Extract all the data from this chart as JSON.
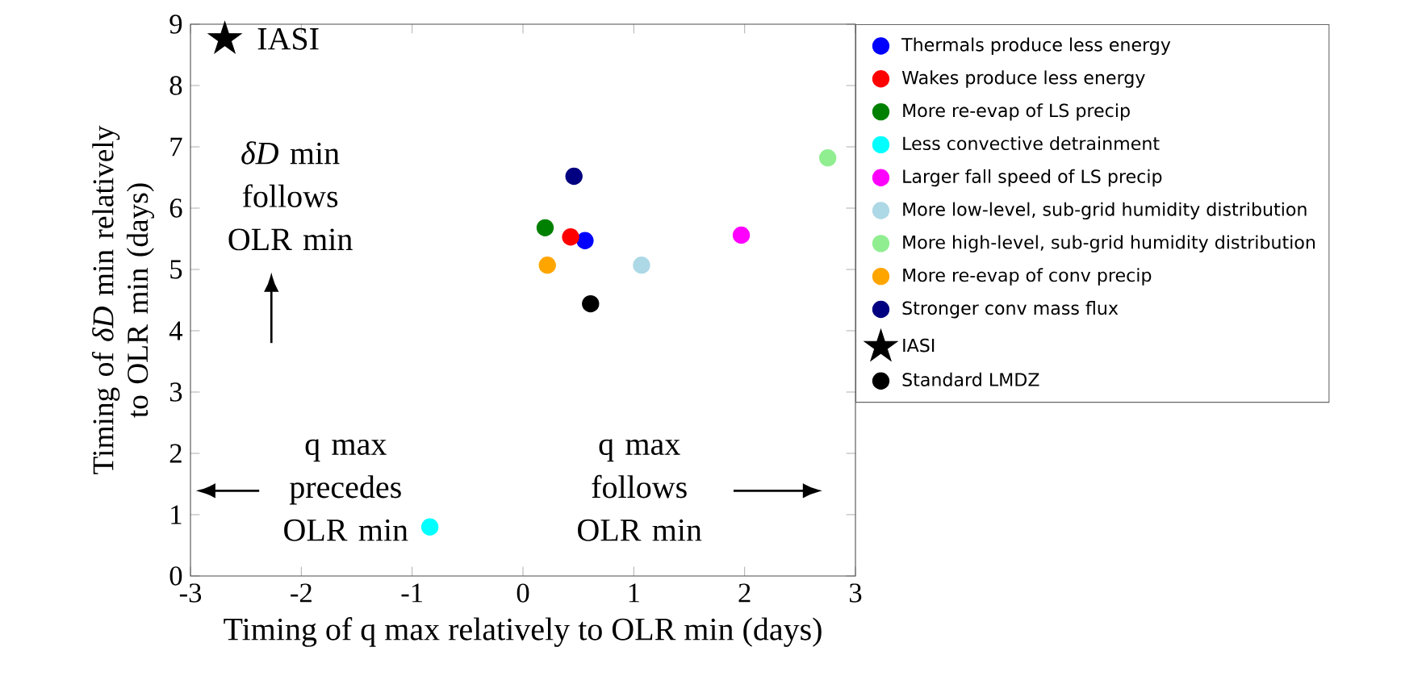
{
  "chart_data": {
    "type": "scatter",
    "xlabel": "Timing of q max relatively to OLR min (days)",
    "ylabel": "Timing of *δD* min relatively to OLR min (days)",
    "xlim": [
      -3,
      3
    ],
    "xticks": [
      -3,
      -2,
      -1,
      0,
      1,
      2,
      3
    ],
    "ylim": [
      0,
      9
    ],
    "yticks": [
      0,
      1,
      2,
      3,
      4,
      5,
      6,
      7,
      8,
      9
    ],
    "legend": "right",
    "series": [
      {
        "name": "Thermals produce less energy",
        "color": "#0000ff",
        "x": [
          0.56
        ],
        "values": [
          5.47
        ],
        "marker": "circle"
      },
      {
        "name": "Wakes produce less energy",
        "color": "#ff0000",
        "x": [
          0.43
        ],
        "values": [
          5.53
        ],
        "marker": "circle"
      },
      {
        "name": "More re-evap of LS precip",
        "color": "#008000",
        "x": [
          0.2
        ],
        "values": [
          5.68
        ],
        "marker": "circle"
      },
      {
        "name": "Less convective detrainment",
        "color": "#00ffff",
        "x": [
          -0.84
        ],
        "values": [
          0.8
        ],
        "marker": "circle"
      },
      {
        "name": "Larger fall speed of LS precip",
        "color": "#ff00ff",
        "x": [
          1.97
        ],
        "values": [
          5.56
        ],
        "marker": "circle"
      },
      {
        "name": "More low-level, sub-grid humidity distribution",
        "color": "#add8e6",
        "x": [
          1.07
        ],
        "values": [
          5.07
        ],
        "marker": "circle"
      },
      {
        "name": "More high-level, sub-grid humidity distribution",
        "color": "#90ee90",
        "x": [
          2.75
        ],
        "values": [
          6.82
        ],
        "marker": "circle"
      },
      {
        "name": "More re-evap of conv precip",
        "color": "#ffa500",
        "x": [
          0.22
        ],
        "values": [
          5.07
        ],
        "marker": "circle"
      },
      {
        "name": "Stronger conv mass flux",
        "color": "#000080",
        "x": [
          0.46
        ],
        "values": [
          6.52
        ],
        "marker": "circle"
      },
      {
        "name": "IASI",
        "color": "#000000",
        "x": [
          -2.69
        ],
        "values": [
          8.76
        ],
        "marker": "star"
      },
      {
        "name": "Standard LMDZ",
        "color": "#000000",
        "x": [
          0.61
        ],
        "values": [
          4.44
        ],
        "marker": "circle"
      }
    ],
    "annotations": [
      {
        "text": "IASI",
        "x": -2.69,
        "y": 8.76
      },
      "*δD* min follows OLR min",
      "q max precedes OLR min",
      "q max follows OLR min"
    ]
  }
}
